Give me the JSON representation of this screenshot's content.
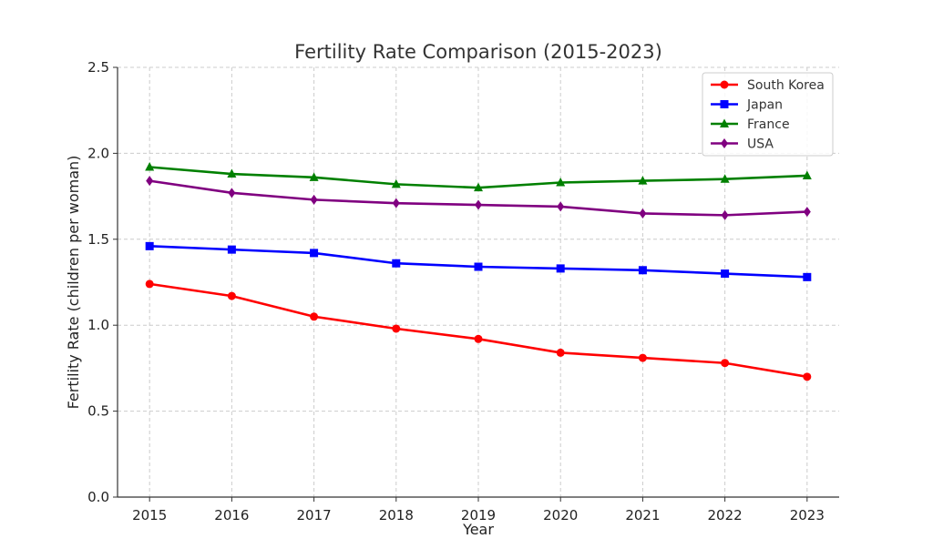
{
  "chart_data": {
    "type": "line",
    "title": "Fertility Rate Comparison (2015-2023)",
    "xlabel": "Year",
    "ylabel": "Fertility Rate (children per woman)",
    "x": [
      2015,
      2016,
      2017,
      2018,
      2019,
      2020,
      2021,
      2022,
      2023
    ],
    "ylim": [
      0,
      2.5
    ],
    "yticks": [
      "0.0",
      "0.5",
      "1.0",
      "1.5",
      "2.0",
      "2.5"
    ],
    "grid": true,
    "legend_position": "top-right",
    "series": [
      {
        "name": "South Korea",
        "color": "#ff0000",
        "marker": "circle",
        "values": [
          1.24,
          1.17,
          1.05,
          0.98,
          0.92,
          0.84,
          0.81,
          0.78,
          0.7
        ]
      },
      {
        "name": "Japan",
        "color": "#0000ff",
        "marker": "square",
        "values": [
          1.46,
          1.44,
          1.42,
          1.36,
          1.34,
          1.33,
          1.32,
          1.3,
          1.28
        ]
      },
      {
        "name": "France",
        "color": "#008000",
        "marker": "triangle",
        "values": [
          1.92,
          1.88,
          1.86,
          1.82,
          1.8,
          1.83,
          1.84,
          1.85,
          1.87
        ]
      },
      {
        "name": "USA",
        "color": "#800080",
        "marker": "diamond",
        "values": [
          1.84,
          1.77,
          1.73,
          1.71,
          1.7,
          1.69,
          1.65,
          1.64,
          1.66
        ]
      }
    ]
  }
}
